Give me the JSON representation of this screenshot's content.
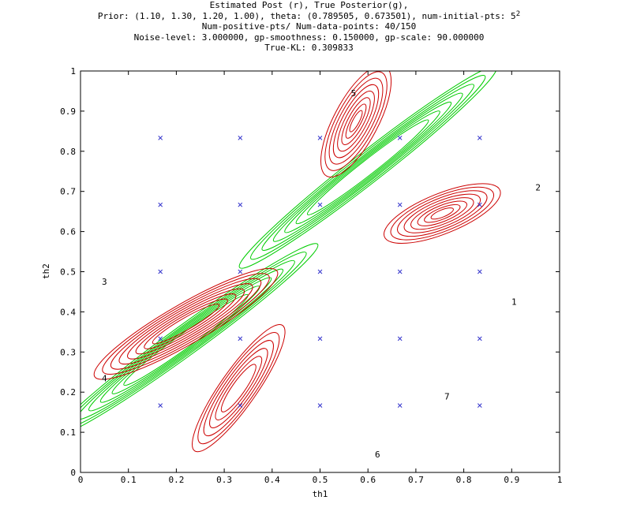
{
  "chart_data": {
    "type": "line",
    "title_lines": [
      "Estimated Post (r), True Posterior(g),",
      "Prior: (1.10, 1.30, 1.20, 1.00), theta: (0.789505, 0.673501), num-initial-pts: 5",
      "Num-positive-pts/ Num-data-points: 40/150",
      "Noise-level: 3.000000, gp-smoothness: 0.150000, gp-scale: 90.000000",
      "True-KL: 0.309833"
    ],
    "title_superscript": "2",
    "xlabel": "th1",
    "ylabel": "th2",
    "xlim": [
      0,
      1
    ],
    "ylim": [
      0,
      1
    ],
    "xticks": [
      "0",
      "0.1",
      "0.2",
      "0.3",
      "0.4",
      "0.5",
      "0.6",
      "0.7",
      "0.8",
      "0.9",
      "1"
    ],
    "yticks": [
      "0",
      "0.1",
      "0.2",
      "0.3",
      "0.4",
      "0.5",
      "0.6",
      "0.7",
      "0.8",
      "0.9",
      "1"
    ],
    "colors": {
      "estimated": "#cc0000",
      "true": "#00cc00",
      "points": "#3333cc",
      "axis": "#000000"
    },
    "sample_points": [
      {
        "x": 0.1667,
        "y": 0.8333
      },
      {
        "x": 0.3333,
        "y": 0.8333
      },
      {
        "x": 0.5,
        "y": 0.8333
      },
      {
        "x": 0.6667,
        "y": 0.8333
      },
      {
        "x": 0.8333,
        "y": 0.8333
      },
      {
        "x": 0.1667,
        "y": 0.6667
      },
      {
        "x": 0.3333,
        "y": 0.6667
      },
      {
        "x": 0.5,
        "y": 0.6667
      },
      {
        "x": 0.6667,
        "y": 0.6667
      },
      {
        "x": 0.8333,
        "y": 0.6667
      },
      {
        "x": 0.1667,
        "y": 0.5
      },
      {
        "x": 0.3333,
        "y": 0.5
      },
      {
        "x": 0.5,
        "y": 0.5
      },
      {
        "x": 0.6667,
        "y": 0.5
      },
      {
        "x": 0.8333,
        "y": 0.5
      },
      {
        "x": 0.1667,
        "y": 0.3333
      },
      {
        "x": 0.3333,
        "y": 0.3333
      },
      {
        "x": 0.5,
        "y": 0.3333
      },
      {
        "x": 0.6667,
        "y": 0.3333
      },
      {
        "x": 0.8333,
        "y": 0.3333
      },
      {
        "x": 0.1667,
        "y": 0.1667
      },
      {
        "x": 0.3333,
        "y": 0.1667
      },
      {
        "x": 0.5,
        "y": 0.1667
      },
      {
        "x": 0.6667,
        "y": 0.1667
      },
      {
        "x": 0.8333,
        "y": 0.1667
      }
    ],
    "annotations": [
      {
        "text": "1",
        "x": 0.905,
        "y": 0.425
      },
      {
        "text": "2",
        "x": 0.955,
        "y": 0.71
      },
      {
        "text": "3",
        "x": 0.05,
        "y": 0.475
      },
      {
        "text": "4",
        "x": 0.05,
        "y": 0.235
      },
      {
        "text": "5",
        "x": 0.57,
        "y": 0.945
      },
      {
        "text": "6",
        "x": 0.62,
        "y": 0.045
      },
      {
        "text": "7",
        "x": 0.765,
        "y": 0.19
      }
    ],
    "true_posterior_modes": [
      {
        "cx": 0.6,
        "cy": 0.76,
        "angle": -38,
        "levels": [
          [
            0.34,
            0.038
          ],
          [
            0.31,
            0.034
          ],
          [
            0.28,
            0.03
          ],
          [
            0.25,
            0.027
          ],
          [
            0.22,
            0.024
          ],
          [
            0.19,
            0.021
          ],
          [
            0.16,
            0.018
          ]
        ]
      },
      {
        "cx": 0.22,
        "cy": 0.33,
        "angle": -36,
        "levels": [
          [
            0.34,
            0.037
          ],
          [
            0.31,
            0.033
          ],
          [
            0.28,
            0.03
          ],
          [
            0.25,
            0.027
          ],
          [
            0.22,
            0.024
          ],
          [
            0.19,
            0.021
          ],
          [
            0.16,
            0.018
          ]
        ]
      }
    ],
    "estimated_posterior_modes": [
      {
        "cx": 0.575,
        "cy": 0.875,
        "angle": -62,
        "levels": [
          [
            0.13,
            0.055
          ],
          [
            0.115,
            0.048
          ],
          [
            0.1,
            0.041
          ],
          [
            0.085,
            0.034
          ],
          [
            0.07,
            0.027
          ],
          [
            0.055,
            0.02
          ],
          [
            0.04,
            0.013
          ],
          [
            0.025,
            0.008
          ]
        ]
      },
      {
        "cx": 0.755,
        "cy": 0.645,
        "angle": -22,
        "levels": [
          [
            0.13,
            0.05
          ],
          [
            0.115,
            0.044
          ],
          [
            0.1,
            0.038
          ],
          [
            0.085,
            0.032
          ],
          [
            0.07,
            0.026
          ],
          [
            0.055,
            0.02
          ],
          [
            0.04,
            0.014
          ],
          [
            0.025,
            0.009
          ]
        ]
      },
      {
        "cx": 0.22,
        "cy": 0.37,
        "angle": -30,
        "levels": [
          [
            0.22,
            0.05
          ],
          [
            0.2,
            0.045
          ],
          [
            0.18,
            0.04
          ],
          [
            0.16,
            0.035
          ],
          [
            0.14,
            0.03
          ],
          [
            0.12,
            0.025
          ],
          [
            0.1,
            0.02
          ],
          [
            0.08,
            0.015
          ]
        ]
      },
      {
        "cx": 0.33,
        "cy": 0.21,
        "angle": -55,
        "levels": [
          [
            0.16,
            0.045
          ],
          [
            0.14,
            0.04
          ],
          [
            0.12,
            0.034
          ],
          [
            0.1,
            0.028
          ],
          [
            0.08,
            0.022
          ],
          [
            0.06,
            0.016
          ]
        ]
      }
    ]
  }
}
